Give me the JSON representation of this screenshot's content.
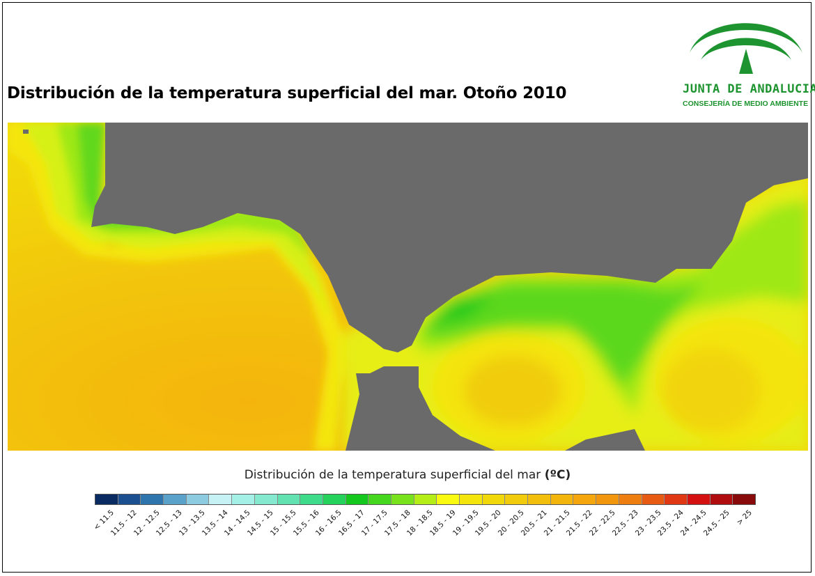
{
  "title": "Distribución de la temperatura superficial del mar. Otoño 2010",
  "logo": {
    "name": "JUNTA DE ANDALUCIA",
    "subtitle": "CONSEJERÍA DE MEDIO AMBIENTE",
    "color": "#1e9430"
  },
  "map": {
    "land_color": "#6a6a6a"
  },
  "legend": {
    "title": "Distribución de la temperatura superficial del mar",
    "unit": "(ºC)",
    "classes": [
      {
        "label": "< 11.5",
        "color": "#0a2a62"
      },
      {
        "label": "11.5 - 12",
        "color": "#1b4f8f"
      },
      {
        "label": "12 - 12.5",
        "color": "#2f75ad"
      },
      {
        "label": "12.5 - 13",
        "color": "#5aa2c9"
      },
      {
        "label": "13 - 13.5",
        "color": "#8ccbe0"
      },
      {
        "label": "13.5 - 14",
        "color": "#c6f2f6"
      },
      {
        "label": "14 - 14.5",
        "color": "#a5f0e6"
      },
      {
        "label": "14.5 - 15",
        "color": "#84e9cf"
      },
      {
        "label": "15 - 15.5",
        "color": "#62e2b0"
      },
      {
        "label": "15.5 - 16",
        "color": "#3edb8a"
      },
      {
        "label": "16 - 16.5",
        "color": "#25d25c"
      },
      {
        "label": "16.5 - 17",
        "color": "#14c81e"
      },
      {
        "label": "17 - 17.5",
        "color": "#45d61e"
      },
      {
        "label": "17.5 - 18",
        "color": "#78e21c"
      },
      {
        "label": "18 - 18.5",
        "color": "#b4ee16"
      },
      {
        "label": "18.5 - 19",
        "color": "#fafa10"
      },
      {
        "label": "19 - 19.5",
        "color": "#f4e60c"
      },
      {
        "label": "19.5 - 20",
        "color": "#f1d80a"
      },
      {
        "label": "20 - 20.5",
        "color": "#f0cc0c"
      },
      {
        "label": "20.5 - 21",
        "color": "#f2c00c"
      },
      {
        "label": "21 - 21.5",
        "color": "#f3b40c"
      },
      {
        "label": "21.5 - 22",
        "color": "#f4a60c"
      },
      {
        "label": "22 - 22.5",
        "color": "#f2960e"
      },
      {
        "label": "22.5 - 23",
        "color": "#ee7e10"
      },
      {
        "label": "23 - 23.5",
        "color": "#e65a12"
      },
      {
        "label": "23.5 - 24",
        "color": "#e03812"
      },
      {
        "label": "24 - 24.5",
        "color": "#d41010"
      },
      {
        "label": "24.5 - 25",
        "color": "#b00e0e"
      },
      {
        "label": "> 25",
        "color": "#880a0a"
      }
    ]
  }
}
